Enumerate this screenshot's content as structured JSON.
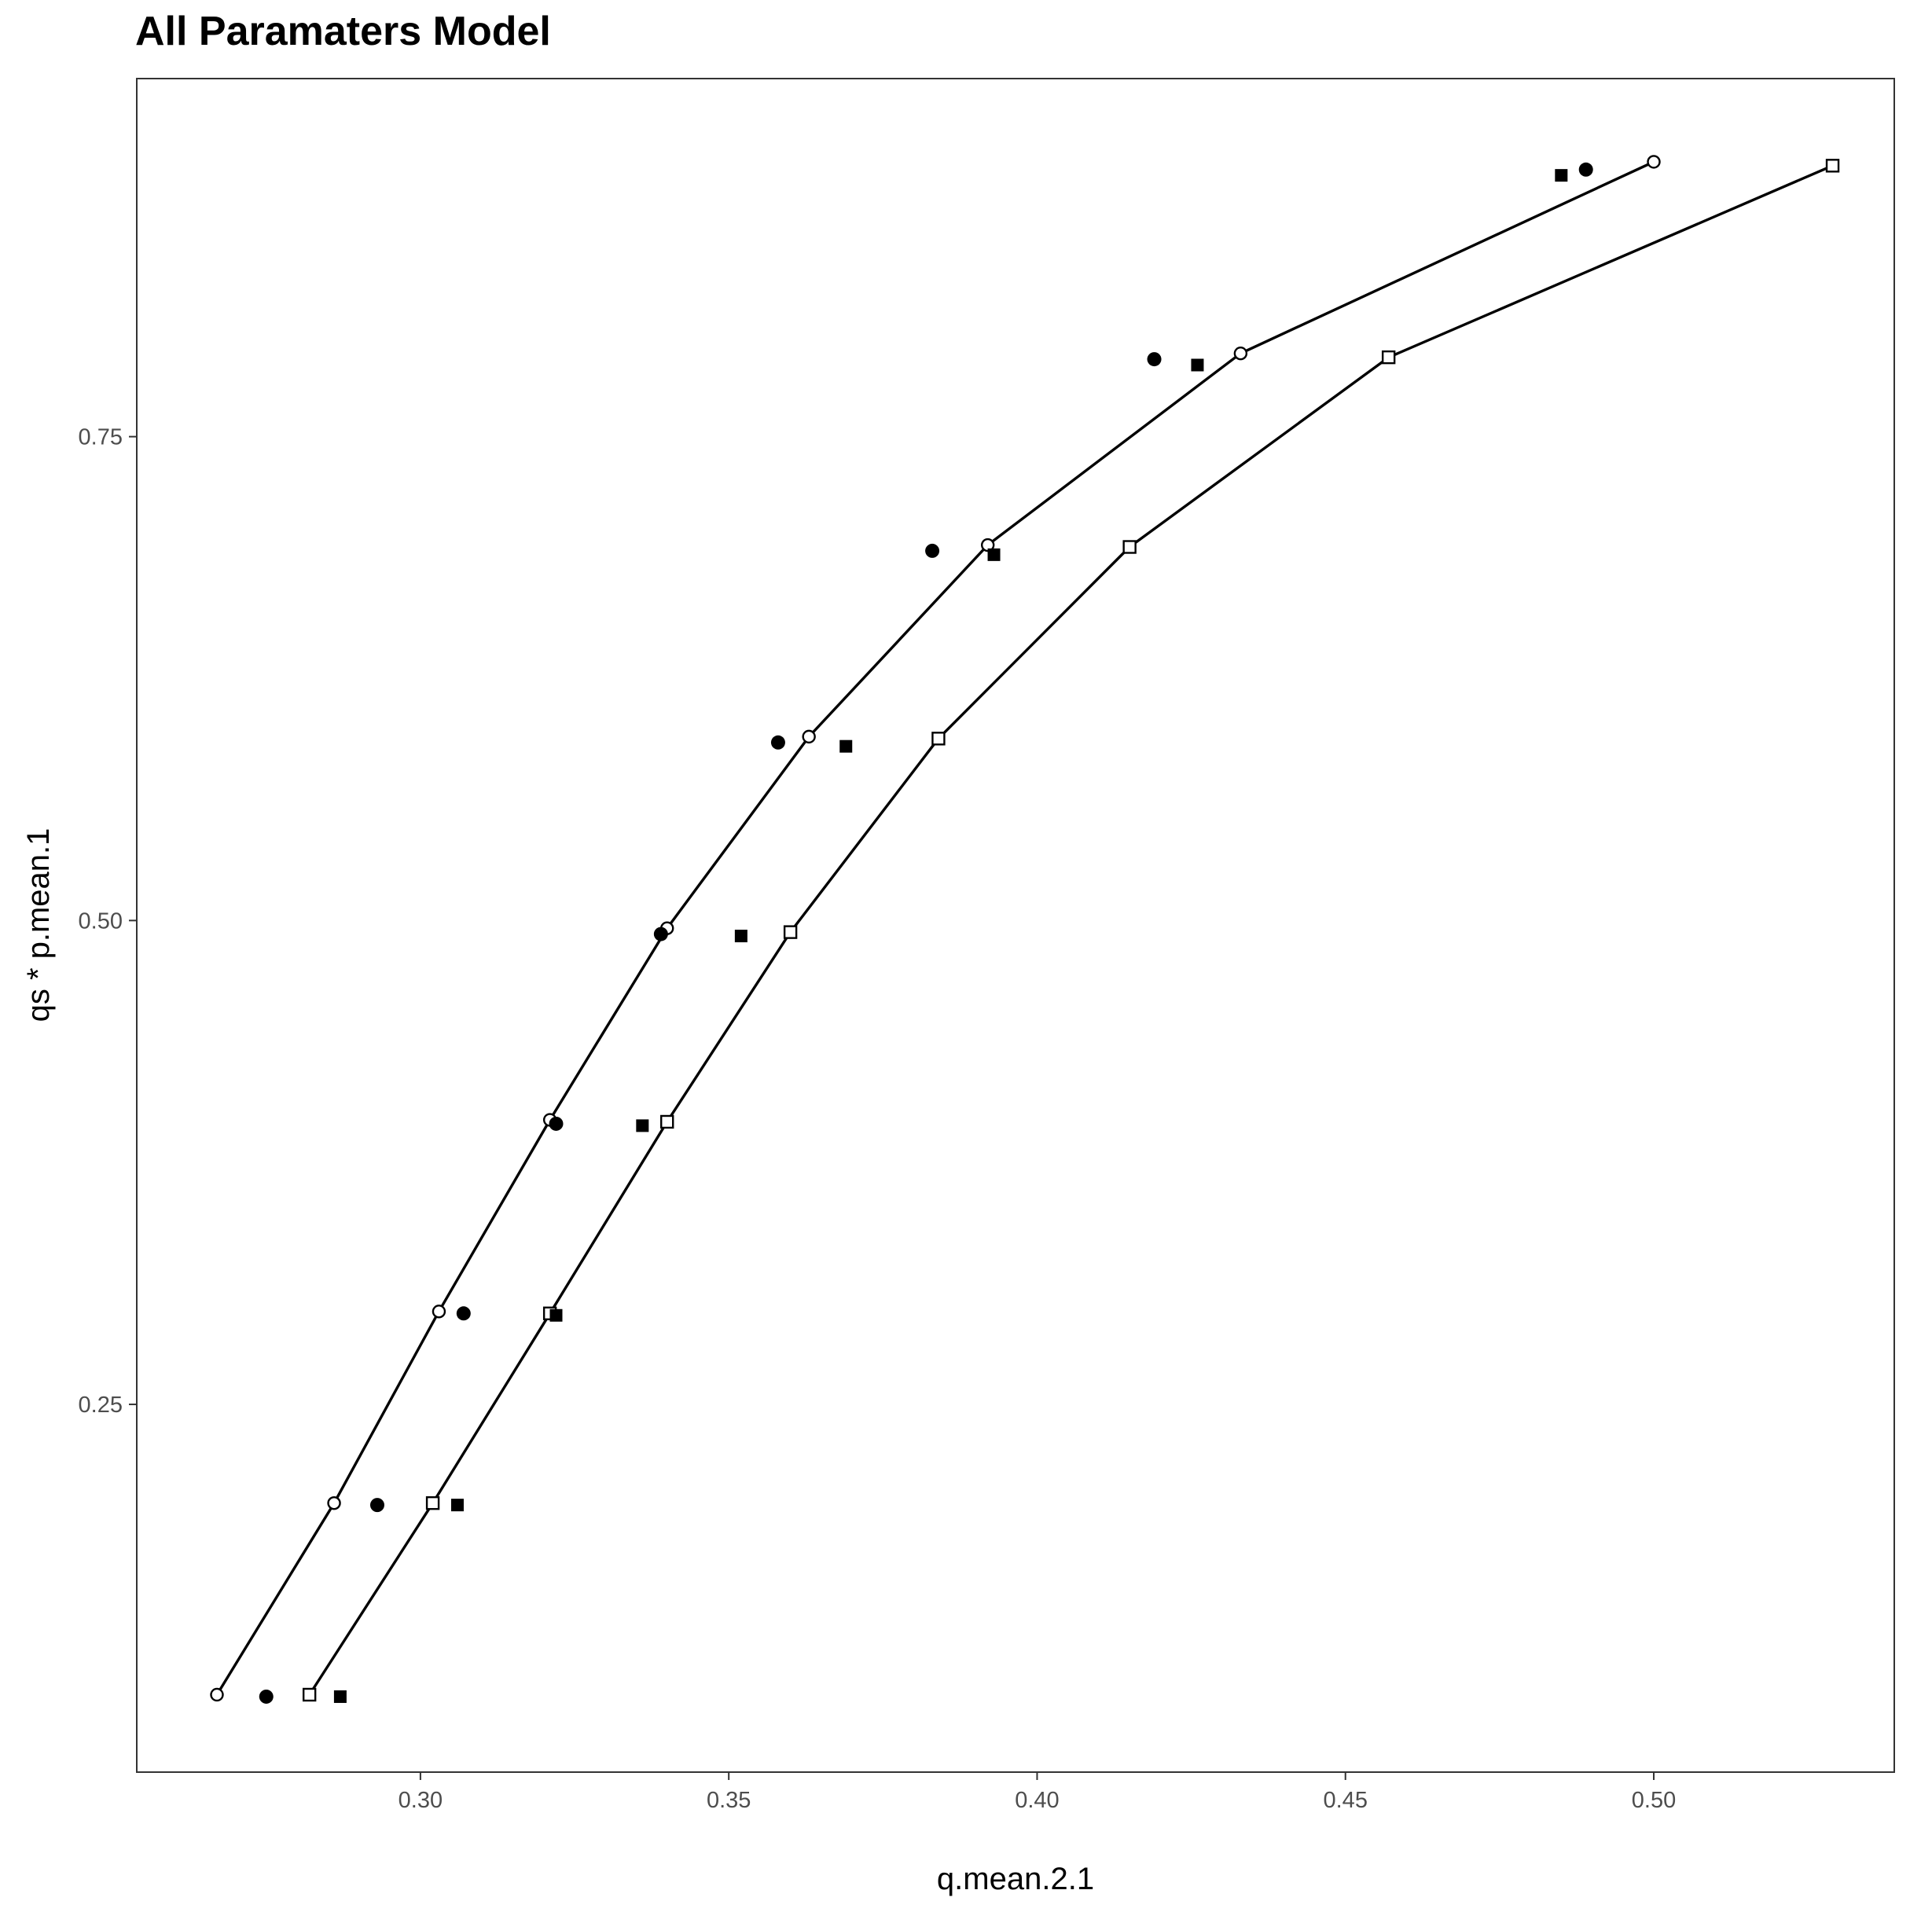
{
  "chart_data": {
    "type": "scatter",
    "title": "All Paramaters Model",
    "xlabel": "q.mean.2.1",
    "ylabel": "qs * p.mean.1",
    "xlim": [
      0.254,
      0.539
    ],
    "ylim": [
      0.06,
      0.935
    ],
    "xticks": [
      {
        "value": 0.3,
        "label": "0.30"
      },
      {
        "value": 0.35,
        "label": "0.35"
      },
      {
        "value": 0.4,
        "label": "0.40"
      },
      {
        "value": 0.45,
        "label": "0.45"
      },
      {
        "value": 0.5,
        "label": "0.50"
      }
    ],
    "yticks": [
      {
        "value": 0.25,
        "label": "0.25"
      },
      {
        "value": 0.5,
        "label": "0.50"
      },
      {
        "value": 0.75,
        "label": "0.75"
      }
    ],
    "grid": false,
    "legend": "none",
    "series": [
      {
        "marker": "open-circle",
        "line": true,
        "x": [
          0.267,
          0.286,
          0.303,
          0.321,
          0.34,
          0.363,
          0.392,
          0.433,
          0.5
        ],
        "y": [
          0.1,
          0.199,
          0.298,
          0.397,
          0.496,
          0.595,
          0.694,
          0.793,
          0.892
        ]
      },
      {
        "marker": "open-square",
        "line": true,
        "x": [
          0.282,
          0.302,
          0.321,
          0.34,
          0.36,
          0.384,
          0.415,
          0.457,
          0.529
        ],
        "y": [
          0.1,
          0.199,
          0.297,
          0.396,
          0.494,
          0.594,
          0.693,
          0.791,
          0.89
        ]
      },
      {
        "marker": "filled-circle",
        "line": false,
        "x": [
          0.275,
          0.293,
          0.307,
          0.322,
          0.339,
          0.358,
          0.383,
          0.419,
          0.489
        ],
        "y": [
          0.099,
          0.198,
          0.297,
          0.395,
          0.493,
          0.592,
          0.691,
          0.79,
          0.888
        ]
      },
      {
        "marker": "filled-square",
        "line": false,
        "x": [
          0.287,
          0.306,
          0.322,
          0.336,
          0.352,
          0.369,
          0.393,
          0.426,
          0.485
        ],
        "y": [
          0.099,
          0.198,
          0.296,
          0.394,
          0.492,
          0.59,
          0.689,
          0.787,
          0.885
        ]
      }
    ]
  }
}
